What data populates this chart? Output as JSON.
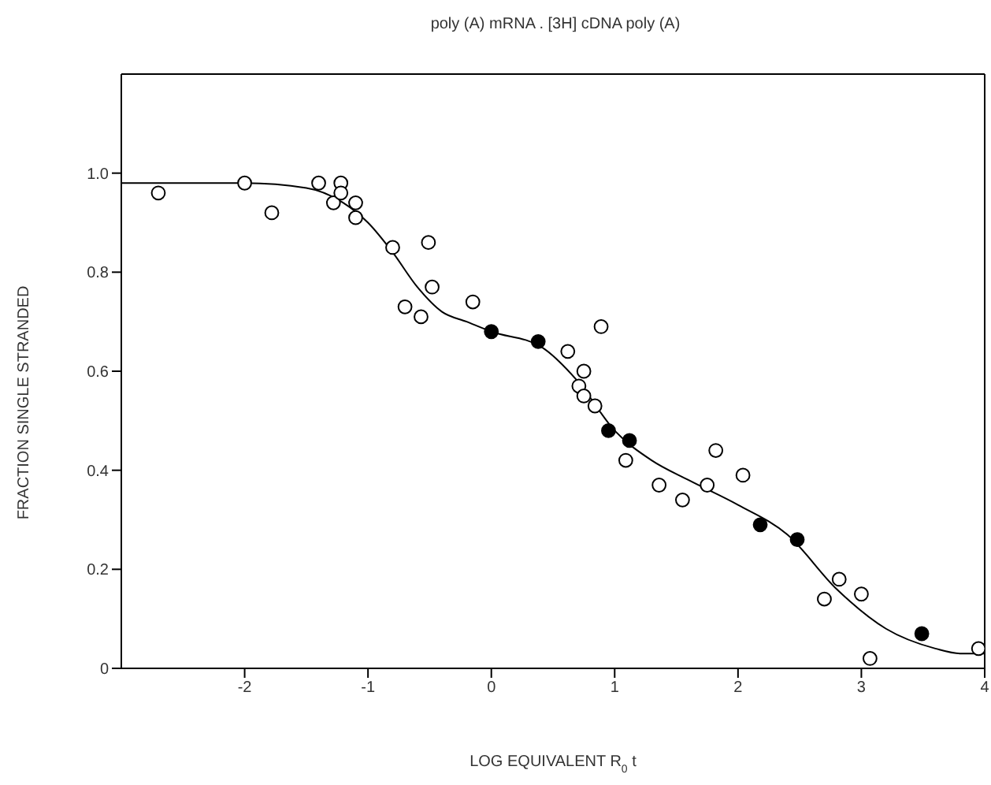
{
  "chart_data": {
    "type": "scatter",
    "title": "poly (A) mRNA . [3H] cDNA poly (A)",
    "xlabel": "LOG EQUIVALENT R$_{0}$t",
    "ylabel": "FRACTION SINGLE STRANDED",
    "xlim": [
      -3,
      4
    ],
    "xticks": [
      -2,
      -1,
      0,
      1,
      2,
      3,
      4
    ],
    "ylim": [
      0,
      1.2
    ],
    "yticks": [
      {
        "value": 0,
        "label": "0"
      },
      {
        "value": 0.2,
        "label": "0.2"
      },
      {
        "value": 0.4,
        "label": "0.4"
      },
      {
        "value": 0.6,
        "label": "0.6"
      },
      {
        "value": 0.8,
        "label": "0.8"
      },
      {
        "value": 1.0,
        "label": "1.0"
      }
    ],
    "grid": false,
    "marker": "circle",
    "series": [
      {
        "color": "#ffffff",
        "x": [
          -2.7,
          -2.0,
          -1.78,
          -1.4,
          -1.28,
          -1.22,
          -1.22,
          -1.1,
          -1.1,
          -0.8,
          -0.51,
          -0.48,
          -0.7,
          -0.57,
          -0.15,
          0.89,
          0.62,
          0.75,
          0.71,
          0.75,
          0.84,
          1.09,
          1.36,
          1.55,
          1.75,
          1.82,
          2.04,
          2.82,
          2.7,
          3.0,
          3.07,
          3.95
        ],
        "values": [
          0.96,
          0.98,
          0.92,
          0.98,
          0.94,
          0.98,
          0.96,
          0.94,
          0.91,
          0.85,
          0.86,
          0.77,
          0.73,
          0.71,
          0.74,
          0.69,
          0.64,
          0.6,
          0.57,
          0.55,
          0.53,
          0.42,
          0.37,
          0.34,
          0.37,
          0.44,
          0.39,
          0.18,
          0.14,
          0.15,
          0.02,
          0.04
        ]
      },
      {
        "color": "#000000",
        "x": [
          0.0,
          0.38,
          0.95,
          1.12,
          2.18,
          2.48,
          3.49
        ],
        "values": [
          0.68,
          0.66,
          0.48,
          0.46,
          0.29,
          0.26,
          0.07
        ]
      },
      {
        "type": "line",
        "color": "#000000",
        "marker": "none",
        "line_style": "solid",
        "x": [
          -3,
          -2,
          -1.5,
          -1.2,
          -1,
          -0.8,
          -0.6,
          -0.4,
          -0.2,
          0,
          0.4,
          0.7,
          1,
          1.3,
          1.6,
          2,
          2.4,
          2.8,
          3.2,
          3.6,
          3.8,
          4
        ],
        "values": [
          0.98,
          0.98,
          0.97,
          0.94,
          0.9,
          0.84,
          0.77,
          0.72,
          0.7,
          0.68,
          0.65,
          0.58,
          0.48,
          0.42,
          0.38,
          0.33,
          0.27,
          0.16,
          0.08,
          0.04,
          0.03,
          0.03
        ]
      }
    ]
  }
}
